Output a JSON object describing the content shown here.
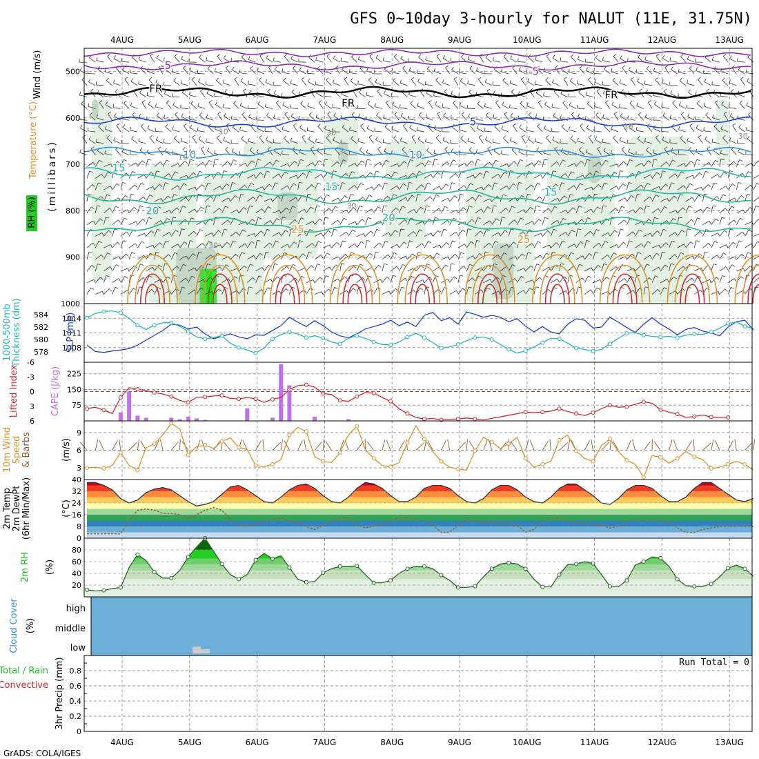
{
  "title": "GFS 0~10day 3-hourly for NALUT (11E, 31.75N)",
  "footer": "GrADS: COLA/IGES",
  "dates": [
    "4AUG",
    "5AUG",
    "6AUG",
    "7AUG",
    "8AUG",
    "9AUG",
    "10AUG",
    "11AUG",
    "12AUG",
    "13AUG"
  ],
  "colors": {
    "grid": "#9a9a9a",
    "purple": "#8a2bb8",
    "black": "#000000",
    "blue": "#1e40d0",
    "lightblue": "#2f8fe0",
    "cyan": "#22b8b8",
    "teal": "#20b890",
    "orange": "#e0902a",
    "red": "#d8262a",
    "cloud": "#6baed6",
    "rh_green": "#22bb22",
    "cape": "#c070f0"
  },
  "chart_data": [
    {
      "panel": "upper-air",
      "type": "contour",
      "ylabels": [
        "Wind (m/s)",
        "Temperature (°C)",
        "RH (%)",
        "(millibars)"
      ],
      "ylim": [
        1000,
        450
      ],
      "yticks": [
        "500",
        "600",
        "700",
        "800",
        "900",
        "1000"
      ],
      "ytick_values": [
        500,
        600,
        700,
        800,
        900,
        1000
      ],
      "isotherm_labels": [
        {
          "text": "-5",
          "level": 487,
          "day": 1.15,
          "color": "purple"
        },
        {
          "text": "-5",
          "level": 500,
          "day": 6.6,
          "color": "purple"
        },
        {
          "text": "FR",
          "level": 537,
          "day": 1.0,
          "color": "black"
        },
        {
          "text": "FR",
          "level": 568,
          "day": 3.85,
          "color": "black"
        },
        {
          "text": "FR",
          "level": 550,
          "day": 7.75,
          "color": "black"
        },
        {
          "text": "5",
          "level": 608,
          "day": 5.7,
          "color": "blue"
        },
        {
          "text": "10",
          "level": 680,
          "day": 1.5,
          "color": "lightblue"
        },
        {
          "text": "10",
          "level": 680,
          "day": 4.85,
          "color": "lightblue"
        },
        {
          "text": "15",
          "level": 708,
          "day": 0.45,
          "color": "cyan"
        },
        {
          "text": "15",
          "level": 748,
          "day": 3.6,
          "color": "cyan"
        },
        {
          "text": "15",
          "level": 760,
          "day": 6.85,
          "color": "cyan"
        },
        {
          "text": "20",
          "level": 800,
          "day": 0.95,
          "color": "teal"
        },
        {
          "text": "20",
          "level": 815,
          "day": 4.45,
          "color": "teal"
        },
        {
          "text": "25",
          "level": 840,
          "day": 3.1,
          "color": "orange"
        },
        {
          "text": "25",
          "level": 862,
          "day": 6.45,
          "color": "orange"
        }
      ],
      "rh_labels": [
        "10",
        "10",
        "30",
        "30",
        "30",
        "30",
        "30"
      ]
    },
    {
      "panel": "slp-thickness",
      "type": "line",
      "ylabels_left": [
        "1000-500mb",
        "Thickness (dm)"
      ],
      "ylabels_right": [
        "SLP (mb)"
      ],
      "yticks_left": [
        "578",
        "580",
        "582",
        "584"
      ],
      "yticks_right": [
        "1008",
        "1011",
        "1014"
      ],
      "ylim": [
        1006,
        1016
      ],
      "series": [
        {
          "name": "SLP (mb)",
          "values": [
            1008.5,
            1007.2,
            1007,
            1007.3,
            1007.5,
            1007.8,
            1008.5,
            1009.5,
            1010.5,
            1011.5,
            1012.8,
            1012.6,
            1011.8,
            1012.2,
            1010.8,
            1009.8,
            1010.3,
            1010.8,
            1010.2,
            1009.8,
            1010.6,
            1010.5,
            1011.5,
            1012.5,
            1014.2,
            1013.2,
            1012.3,
            1013.5,
            1012.5,
            1011.2,
            1010.4,
            1010,
            1010.8,
            1011.8,
            1012.3,
            1012.8,
            1013.6,
            1012.5,
            1013.2,
            1012.3,
            1014.6,
            1015.2,
            1013.5,
            1014.1,
            1012.8,
            1015.3,
            1014.8,
            1014.2,
            1014.6,
            1014.2,
            1013.3,
            1013.9,
            1012.4,
            1011.2,
            1012.3,
            1011.2,
            1010.8,
            1012.8,
            1013.9,
            1013.6,
            1012,
            1012.2,
            1014.2,
            1013.2,
            1012.1,
            1011.1,
            1012.8,
            1014.1,
            1012.8,
            1011.8,
            1010.6,
            1011.7,
            1012.1,
            1011.4,
            1011,
            1010.4,
            1012.2,
            1013.3,
            1013.6,
            1011.6
          ]
        },
        {
          "name": "Thickness (dm)",
          "values": [
            583.5,
            584.2,
            584.5,
            584.6,
            584.3,
            583.4,
            582.3,
            581.6,
            582.3,
            582.7,
            582.7,
            582.1,
            581.3,
            580.4,
            580.1,
            580.3,
            580.6,
            579.4,
            578.7,
            578.3,
            577.8,
            578.6,
            580.1,
            580.8,
            581.2,
            580.9,
            580.3,
            580.6,
            580.2,
            579.6,
            579.3,
            580.2,
            580.6,
            580.2,
            579.6,
            579.2,
            579.1,
            579.6,
            580.4,
            581,
            580.3,
            579.5,
            578.6,
            578.8,
            579.2,
            579.8,
            580.3,
            580.4,
            580,
            579.2,
            578.4,
            577.8,
            578.2,
            578.8,
            579.5,
            580.2,
            580.1,
            579.4,
            578.6,
            578.4,
            578.1,
            578.4,
            579.3,
            580.2,
            581,
            581.1,
            580.7,
            580.5,
            580.4,
            580.5,
            580.3,
            580.7,
            580.9,
            580.8,
            581.2,
            581.8,
            582.6,
            582.8,
            582.1,
            581.8
          ]
        }
      ]
    },
    {
      "panel": "cape-li",
      "type": "bar",
      "ylabels_left": [
        "Lifted Index"
      ],
      "ylabels_right": [
        "CAPE (J/kg)"
      ],
      "yticks_left": [
        "-6",
        "-3",
        "0",
        "3",
        "6"
      ],
      "yticks_right": [
        "75",
        "150",
        "225"
      ],
      "series": [
        {
          "name": "Lifted Index",
          "values": [
            3.5,
            3.2,
            3.8,
            4.5,
            1.2,
            -0.8,
            -0.5,
            -0.2,
            0.2,
            0.5,
            1.0,
            1.8,
            2.2,
            1.2,
            1.1,
            0.9,
            0.8,
            1.4,
            1.5,
            1.2,
            1.5,
            2.2,
            1.6,
            1.2,
            -0.4,
            -1.2,
            -1.4,
            -0.9,
            0.4,
            0.6,
            1.8,
            2.0,
            1.0,
            0.2,
            0.3,
            1.2,
            2.0,
            3.5,
            4.5,
            5.3,
            5.6,
            5.5,
            5.8,
            5.7,
            5.6,
            5.4,
            5.6,
            5.8,
            null,
            null,
            null,
            null,
            4.2,
            4.3,
            4.2,
            4.0,
            3.5,
            4.1,
            4.5,
            4.9,
            4.3,
            3.5,
            2.8,
            3.2,
            3.1,
            2.6,
            2.1,
            2.4,
            3.7,
            4.2,
            4.6,
            5.3,
            5.1,
            4.8,
            5.2,
            5.3,
            5.3,
            null,
            null,
            null
          ]
        },
        {
          "name": "CAPE (J/kg)",
          "values": [
            0,
            0,
            0,
            0,
            40,
            140,
            25,
            15,
            0,
            0,
            15,
            8,
            20,
            12,
            5,
            0,
            0,
            0,
            0,
            60,
            0,
            0,
            15,
            270,
            170,
            0,
            0,
            20,
            0,
            0,
            0,
            8,
            0,
            0,
            0,
            0,
            0,
            0,
            0,
            0,
            0,
            0,
            0,
            0,
            0,
            0,
            0,
            0,
            0,
            0,
            0,
            0,
            0,
            0,
            0,
            0,
            0,
            0,
            0,
            0,
            0,
            0,
            0,
            0,
            0,
            0,
            0,
            0,
            0,
            0,
            0,
            0,
            0,
            0,
            0,
            0,
            0,
            0,
            0,
            0
          ]
        }
      ]
    },
    {
      "panel": "wind10m",
      "type": "line",
      "ylabels_left": [
        "10m Wind",
        "Speed",
        "& Barbs"
      ],
      "ylabels_right": [
        "(m/s)"
      ],
      "yticks": [
        "3",
        "6",
        "9"
      ],
      "ylim": [
        1,
        11
      ],
      "series": [
        {
          "name": "Speed",
          "values": [
            3,
            3.1,
            2.9,
            3.4,
            5.6,
            3.4,
            2.6,
            6.4,
            7.1,
            8.6,
            10.6,
            9.6,
            5.2,
            6.6,
            6.9,
            6.3,
            7.5,
            8.1,
            6.5,
            6.1,
            3.4,
            3.2,
            3.6,
            4.4,
            8.6,
            9.9,
            9.2,
            4.9,
            4.1,
            3.9,
            5.6,
            8.6,
            10.1,
            6.1,
            4.6,
            3.4,
            3.2,
            3.9,
            7.3,
            10.2,
            7.9,
            5.8,
            4.1,
            3.1,
            2.8,
            2.6,
            5.9,
            8.2,
            7.4,
            6.3,
            7.1,
            8.2,
            4.6,
            3.1,
            3.6,
            4.1,
            7.7,
            8.6,
            5.9,
            4.6,
            4.1,
            6.8,
            7.9,
            5.8,
            4.3,
            3.6,
            1.4,
            5.1,
            4.8,
            3.8,
            4.6,
            5.8,
            4.9,
            4.4,
            2.9,
            3.1,
            3.6,
            4.1,
            3.6,
            2.6
          ]
        }
      ]
    },
    {
      "panel": "temp2m",
      "type": "area",
      "ylabels_left": [
        "2m Temp",
        "2m DewPt",
        "(6hr Min/Max)"
      ],
      "ylabels_right": [
        "(°C)"
      ],
      "yticks": [
        "0",
        "8",
        "16",
        "24",
        "32",
        "40"
      ],
      "ylim": [
        0,
        40
      ],
      "series": [
        {
          "name": "2m Temp",
          "values": [
            38,
            38,
            36,
            33,
            27,
            24,
            26,
            31,
            33.5,
            34.5,
            33,
            29,
            25,
            22,
            23,
            25,
            30,
            35,
            36,
            33,
            29,
            25,
            24,
            28,
            33,
            36,
            37,
            34,
            29,
            25,
            24,
            28,
            34,
            38,
            37,
            34,
            29,
            25,
            25,
            28,
            34,
            36,
            36,
            34,
            29,
            25,
            24,
            27,
            33,
            36,
            36,
            33,
            28,
            25,
            24,
            28,
            34,
            37,
            37,
            33,
            29,
            24,
            23,
            27,
            33,
            36,
            36,
            34,
            29,
            25,
            25,
            28,
            34,
            38,
            38,
            34,
            30,
            26,
            25,
            27
          ]
        },
        {
          "name": "2m DewPt",
          "values": [
            3,
            3,
            3,
            3,
            3,
            12,
            19,
            20,
            19,
            17,
            17,
            16,
            14,
            16,
            19,
            21,
            19,
            13,
            9,
            8,
            10,
            12,
            13,
            14,
            12,
            11,
            8,
            6,
            9,
            12,
            14,
            14,
            9,
            7,
            8,
            10,
            12,
            14,
            14,
            13,
            12,
            9,
            4,
            4,
            9,
            13,
            12,
            11,
            11,
            10,
            10,
            9,
            4,
            6,
            12,
            13,
            14,
            12,
            11,
            10,
            10,
            9,
            7,
            8,
            12,
            13,
            12,
            13,
            12,
            11,
            7,
            4,
            4,
            6,
            7,
            8,
            8,
            8,
            8,
            8
          ]
        }
      ]
    },
    {
      "panel": "rh2m",
      "type": "area",
      "ylabels_left": [
        "2m RH"
      ],
      "ylabels_right": [
        "(%)"
      ],
      "yticks": [
        "20",
        "40",
        "60",
        "80"
      ],
      "ylim": [
        0,
        100
      ],
      "series": [
        {
          "name": "2m RH",
          "values": [
            12,
            10,
            11,
            14,
            16,
            50,
            72,
            62,
            42,
            32,
            32,
            45,
            68,
            85,
            100,
            78,
            56,
            38,
            30,
            38,
            63,
            74,
            65,
            70,
            50,
            30,
            25,
            26,
            41,
            48,
            52,
            52,
            53,
            38,
            24,
            24,
            28,
            40,
            48,
            52,
            52,
            48,
            37,
            28,
            16,
            16,
            18,
            34,
            48,
            56,
            58,
            56,
            48,
            30,
            17,
            17,
            38,
            55,
            56,
            60,
            57,
            38,
            18,
            17,
            28,
            54,
            60,
            68,
            66,
            52,
            30,
            19,
            18,
            18,
            22,
            34,
            49,
            54,
            48,
            35
          ]
        }
      ]
    },
    {
      "panel": "cloud",
      "type": "heatmap",
      "ylabels_left": [
        "Cloud Cover"
      ],
      "ylabels_right": [
        "(%)"
      ],
      "levels": [
        "high",
        "middle",
        "low"
      ],
      "note": "low cloud near 5AUG"
    },
    {
      "panel": "precip",
      "type": "bar",
      "ylabels_left": [
        "Total / Rain",
        "Convective"
      ],
      "ylabels_right": [
        "3hr Precip (mm)"
      ],
      "yticks": [
        "0",
        "0.2",
        "0.4",
        "0.6",
        "0.8"
      ],
      "ylim": [
        0,
        1
      ],
      "run_total": "Run Total = 0",
      "values": []
    }
  ]
}
